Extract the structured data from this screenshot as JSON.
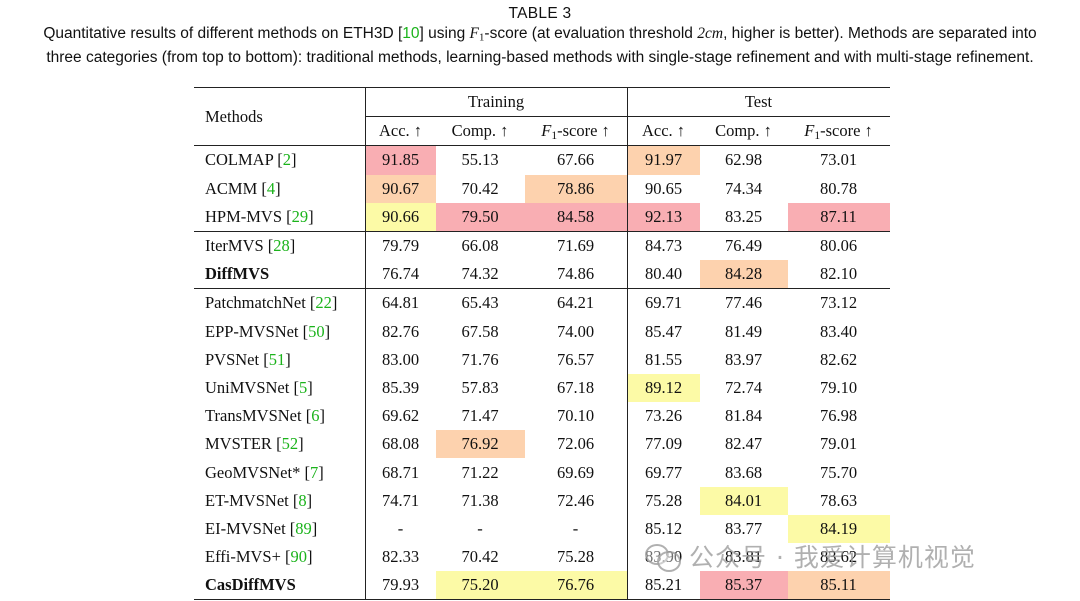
{
  "caption": {
    "title": "TABLE 3",
    "line1_a": "Quantitative results of different methods on ETH3D [",
    "line1_cite": "10",
    "line1_b": "] using ",
    "f1_symbol": "F",
    "f1_sub": "1",
    "line1_c": "-score (at evaluation threshold ",
    "threshold": "2cm",
    "line1_d": ", higher is better). Methods are separated into",
    "line2": "three categories (from top to bottom): traditional methods, learning-based methods with single-stage refinement and with multi-stage refinement."
  },
  "table": {
    "header": {
      "methods": "Methods",
      "training": "Training",
      "test": "Test",
      "acc": "Acc. ↑",
      "comp": "Comp. ↑",
      "f1_letter": "F",
      "f1_sub": "1",
      "f1_rest": "-score ↑"
    },
    "rows": [
      {
        "name": "COLMAP",
        "cite": "2",
        "vals": [
          "91.85",
          "55.13",
          "67.66",
          "91.97",
          "62.98",
          "73.01"
        ]
      },
      {
        "name": "ACMM",
        "cite": "4",
        "vals": [
          "90.67",
          "70.42",
          "78.86",
          "90.65",
          "74.34",
          "80.78"
        ]
      },
      {
        "name": "HPM-MVS",
        "cite": "29",
        "vals": [
          "90.66",
          "79.50",
          "84.58",
          "92.13",
          "83.25",
          "87.11"
        ]
      },
      {
        "name": "IterMVS",
        "cite": "28",
        "vals": [
          "79.79",
          "66.08",
          "71.69",
          "84.73",
          "76.49",
          "80.06"
        ]
      },
      {
        "name": "DiffMVS",
        "cite": "",
        "vals": [
          "76.74",
          "74.32",
          "74.86",
          "80.40",
          "84.28",
          "82.10"
        ]
      },
      {
        "name": "PatchmatchNet",
        "cite": "22",
        "vals": [
          "64.81",
          "65.43",
          "64.21",
          "69.71",
          "77.46",
          "73.12"
        ]
      },
      {
        "name": "EPP-MVSNet",
        "cite": "50",
        "vals": [
          "82.76",
          "67.58",
          "74.00",
          "85.47",
          "81.49",
          "83.40"
        ]
      },
      {
        "name": "PVSNet",
        "cite": "51",
        "vals": [
          "83.00",
          "71.76",
          "76.57",
          "81.55",
          "83.97",
          "82.62"
        ]
      },
      {
        "name": "UniMVSNet",
        "cite": "5",
        "vals": [
          "85.39",
          "57.83",
          "67.18",
          "89.12",
          "72.74",
          "79.10"
        ]
      },
      {
        "name": "TransMVSNet",
        "cite": "6",
        "vals": [
          "69.62",
          "71.47",
          "70.10",
          "73.26",
          "81.84",
          "76.98"
        ]
      },
      {
        "name": "MVSTER",
        "cite": "52",
        "vals": [
          "68.08",
          "76.92",
          "72.06",
          "77.09",
          "82.47",
          "79.01"
        ]
      },
      {
        "name": "GeoMVSNet*",
        "cite": "7",
        "vals": [
          "68.71",
          "71.22",
          "69.69",
          "69.77",
          "83.68",
          "75.70"
        ]
      },
      {
        "name": "ET-MVSNet",
        "cite": "8",
        "vals": [
          "74.71",
          "71.38",
          "72.46",
          "75.28",
          "84.01",
          "78.63"
        ]
      },
      {
        "name": "EI-MVSNet",
        "cite": "89",
        "vals": [
          "-",
          "-",
          "-",
          "85.12",
          "83.77",
          "84.19"
        ]
      },
      {
        "name": "Effi-MVS+",
        "cite": "90",
        "vals": [
          "82.33",
          "70.42",
          "75.28",
          "83.90",
          "83.81",
          "83.62"
        ]
      },
      {
        "name": "CasDiffMVS",
        "cite": "",
        "vals": [
          "79.93",
          "75.20",
          "76.76",
          "85.21",
          "85.37",
          "85.11"
        ]
      }
    ]
  },
  "watermark": "公众号 · 我爱计算机视觉"
}
